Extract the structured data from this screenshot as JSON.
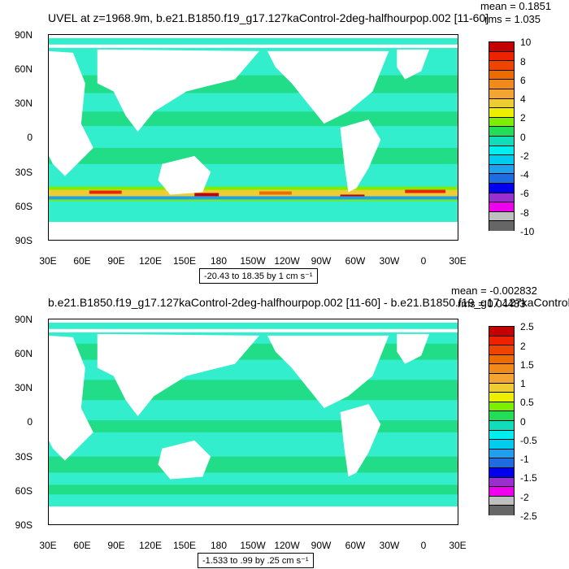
{
  "panels": [
    {
      "title": "UVEL at z=1968.9m, b.e21.B1850.f19_g17.127kaControl-2deg-halfhourpop.002 [11-60]",
      "mean": "mean = 0.1851",
      "rms": "rms = 1.035",
      "range": "-20.43 to 18.35 by 1 cm s⁻¹",
      "colorbar_labels": [
        "10",
        "8",
        "6",
        "4",
        "2",
        "0",
        "-2",
        "-4",
        "-6",
        "-8",
        "-10"
      ]
    },
    {
      "title": "b.e21.B1850.f19_g17.127kaControl-2deg-halfhourpop.002 [11-60] - b.e21.B1850.f19_g17.127kaControl-",
      "mean": "mean = -0.002832",
      "rms": "rms = 0.04483",
      "range": "-1.533 to .99 by .25 cm s⁻¹",
      "colorbar_labels": [
        "2.5",
        "2",
        "1.5",
        "1",
        "0.5",
        "0",
        "-0.5",
        "-1",
        "-1.5",
        "-2",
        "-2.5"
      ]
    }
  ],
  "lat_labels": [
    "90N",
    "60N",
    "30N",
    "0",
    "30S",
    "60S",
    "90S"
  ],
  "lon_labels": [
    "30E",
    "60E",
    "90E",
    "120E",
    "150E",
    "180",
    "150W",
    "120W",
    "90W",
    "60W",
    "30W",
    "0",
    "30E"
  ],
  "colors": {
    "palette": [
      "#666666",
      "#bfbfbf",
      "#ee00ee",
      "#9a2fcf",
      "#0000ee",
      "#1e6ce0",
      "#1ea0ee",
      "#00ccee",
      "#00eeee",
      "#11ddbb",
      "#22dd55",
      "#7cee00",
      "#eeee00",
      "#eecc33",
      "#f4a531",
      "#f08a1b",
      "#ee6b00",
      "#ee2200",
      "#c40000"
    ],
    "ocean_mid": "#22dd88",
    "ocean_low": "#33eecc",
    "land": "#ffffff"
  }
}
